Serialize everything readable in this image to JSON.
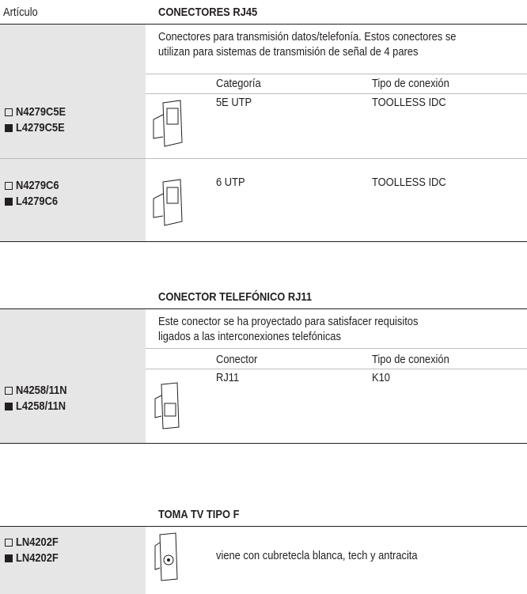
{
  "header": {
    "label": "Artículo"
  },
  "sections": [
    {
      "title": "CONECTORES RJ45",
      "description_lines": [
        "Conectores para transmisión datos/telefonía. Estos conectores se",
        "utilizan para sistemas de transmisión de señal de 4 pares"
      ],
      "columns": [
        "Categoría",
        "Tipo de conexión"
      ],
      "products": [
        {
          "codes": [
            "N4279C5E",
            "L4279C5E"
          ],
          "values": [
            "5E UTP",
            "TOOLLESS IDC"
          ]
        },
        {
          "codes": [
            "N4279C6",
            "L4279C6"
          ],
          "values": [
            "6 UTP",
            "TOOLLESS IDC"
          ]
        }
      ]
    },
    {
      "title": "CONECTOR TELEFÓNICO RJ11",
      "description_lines": [
        "Este conector se ha proyectado para satisfacer requisitos",
        "ligados a las interconexiones telefónicas"
      ],
      "columns": [
        "Conector",
        "Tipo de conexión"
      ],
      "products": [
        {
          "codes": [
            "N4258/11N",
            "L4258/11N"
          ],
          "values": [
            "RJ11",
            "K10"
          ]
        }
      ]
    },
    {
      "title": "TOMA TV TIPO F",
      "products": [
        {
          "codes": [
            "LN4202F",
            "LN4202F"
          ],
          "description": "viene con cubretecla blanca, tech y antracita"
        }
      ]
    }
  ]
}
